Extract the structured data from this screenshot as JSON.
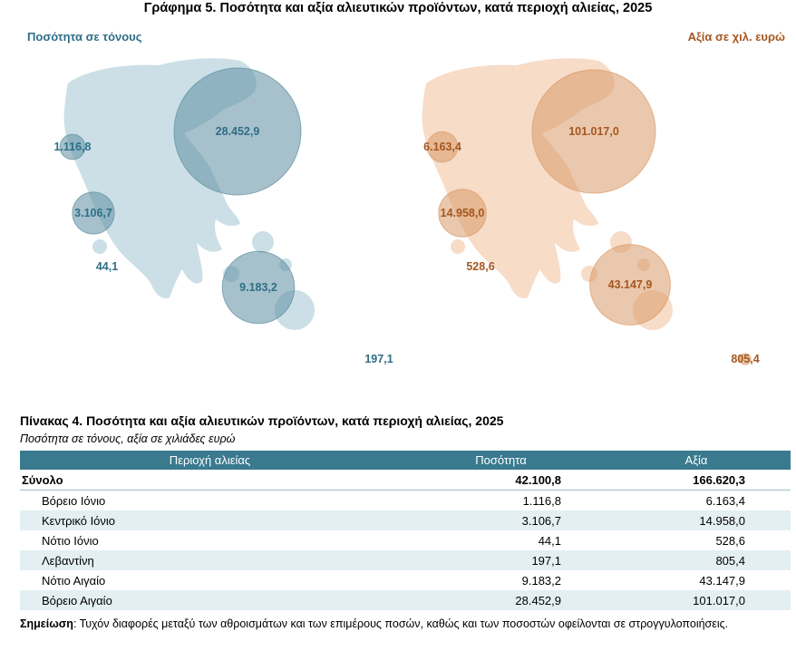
{
  "figure": {
    "title": "Γράφημα 5. Ποσότητα και αξία αλιευτικών προϊόντων, κατά περιοχή αλιείας, 2025",
    "left_label": "Ποσότητα σε τόνους",
    "right_label": "Αξία σε χιλ. ευρώ",
    "colors": {
      "quantity": "#5d8ea0",
      "quantity_text": "#2e6e87",
      "value": "#d89a6a",
      "value_text": "#a5561f",
      "map_left": "#ccdfe6",
      "map_right": "#f7dcc8"
    }
  },
  "chart_data": {
    "type": "table",
    "title": "Γράφημα 5. Ποσότητα και αξία αλιευτικών προϊόντων, κατά περιοχή αλιείας, 2025",
    "categories": [
      "Βόρειο Ιόνιο",
      "Κεντρικό Ιόνιο",
      "Νότιο Ιόνιο",
      "Λεβαντίνη",
      "Νότιο Αιγαίο",
      "Βόρειο Αιγαίο"
    ],
    "series": [
      {
        "name": "Ποσότητα σε τόνους",
        "values": [
          1116.8,
          3106.7,
          44.1,
          197.1,
          9183.2,
          28452.9
        ]
      },
      {
        "name": "Αξία σε χιλ. ευρώ",
        "values": [
          6163.4,
          14958.0,
          528.6,
          805.4,
          43147.9,
          101017.0
        ]
      }
    ]
  },
  "map_labels": {
    "quantity": [
      "1.116,8",
      "3.106,7",
      "44,1",
      "197,1",
      "9.183,2",
      "28.452,9"
    ],
    "value": [
      "6.163,4",
      "14.958,0",
      "528,6",
      "805,4",
      "43.147,9",
      "101.017,0"
    ]
  },
  "table": {
    "title": "Πίνακας 4. Ποσότητα και αξία αλιευτικών προϊόντων, κατά περιοχή αλιείας, 2025",
    "subtitle": "Ποσότητα σε τόνους, αξία σε χιλιάδες ευρώ",
    "headers": [
      "Περιοχή αλιείας",
      "Ποσότητα",
      "Αξία"
    ],
    "total": [
      "Σύνολο",
      "42.100,8",
      "166.620,3"
    ],
    "rows": [
      [
        "Βόρειο Ιόνιο",
        "1.116,8",
        "6.163,4"
      ],
      [
        "Κεντρικό Ιόνιο",
        "3.106,7",
        "14.958,0"
      ],
      [
        "Νότιο Ιόνιο",
        "44,1",
        "528,6"
      ],
      [
        "Λεβαντίνη",
        "197,1",
        "805,4"
      ],
      [
        "Νότιο Αιγαίο",
        "9.183,2",
        "43.147,9"
      ],
      [
        "Βόρειο Αιγαίο",
        "28.452,9",
        "101.017,0"
      ]
    ]
  },
  "note": {
    "label": "Σημείωση",
    "text": ": Τυχόν διαφορές μεταξύ των αθροισμάτων και των επιμέρους ποσών, καθώς και των ποσοστών οφείλονται σε στρογγυλοποιήσεις."
  }
}
